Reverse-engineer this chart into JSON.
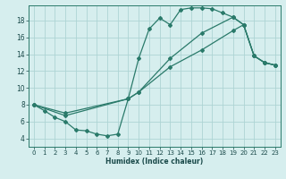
{
  "xlabel": "Humidex (Indice chaleur)",
  "bg_color": "#d6eeee",
  "grid_color": "#aed4d4",
  "line_color": "#2a7a6a",
  "xlim": [
    -0.5,
    23.5
  ],
  "ylim": [
    3.0,
    19.8
  ],
  "xticks": [
    0,
    1,
    2,
    3,
    4,
    5,
    6,
    7,
    8,
    9,
    10,
    11,
    12,
    13,
    14,
    15,
    16,
    17,
    18,
    19,
    20,
    21,
    22,
    23
  ],
  "yticks": [
    4,
    6,
    8,
    10,
    12,
    14,
    16,
    18
  ],
  "line1_x": [
    0,
    1,
    2,
    3,
    4,
    5,
    6,
    7,
    8,
    9,
    10,
    11,
    12,
    13,
    14,
    15,
    16,
    17,
    18,
    19,
    20,
    21,
    22,
    23
  ],
  "line1_y": [
    8.0,
    7.3,
    6.5,
    6.0,
    5.0,
    4.9,
    4.5,
    4.3,
    4.5,
    8.7,
    13.5,
    17.0,
    18.3,
    17.5,
    19.3,
    19.5,
    19.5,
    19.4,
    18.9,
    18.4,
    17.5,
    13.8,
    13.0,
    12.7
  ],
  "line2_x": [
    0,
    3,
    9,
    10,
    13,
    16,
    19,
    20,
    21,
    22,
    23
  ],
  "line2_y": [
    8.0,
    7.0,
    8.7,
    9.5,
    13.5,
    16.5,
    18.4,
    17.5,
    13.8,
    13.0,
    12.7
  ],
  "line3_x": [
    0,
    3,
    9,
    10,
    13,
    16,
    19,
    20,
    21,
    22,
    23
  ],
  "line3_y": [
    8.0,
    6.7,
    8.7,
    9.5,
    12.5,
    14.5,
    16.8,
    17.5,
    13.8,
    13.0,
    12.7
  ]
}
